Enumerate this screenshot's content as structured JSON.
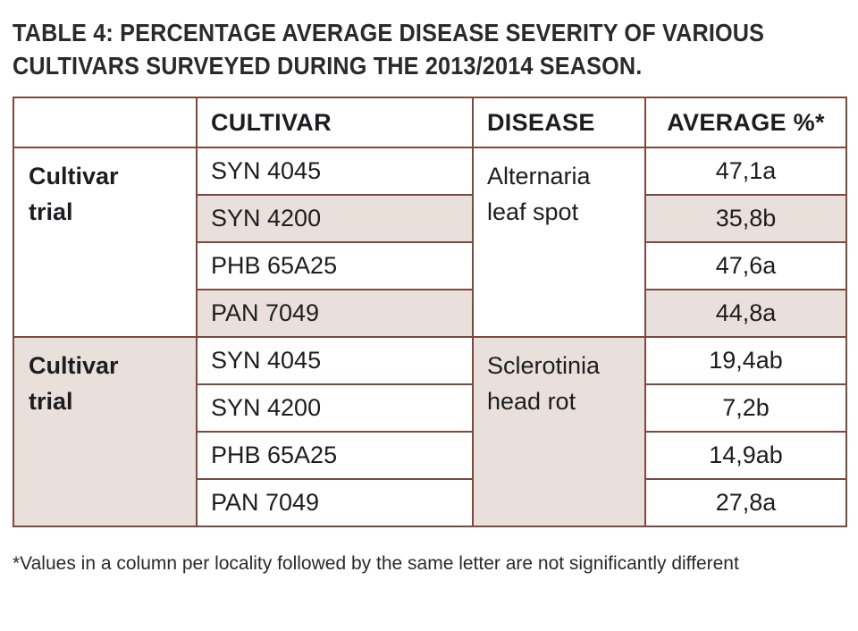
{
  "title": {
    "line1": "TABLE 4: PERCENTAGE AVERAGE DISEASE SEVERITY OF VARIOUS",
    "line2": "CULTIVARS SURVEYED DURING THE 2013/2014 SEASON."
  },
  "table": {
    "headers": [
      "",
      "CULTIVAR",
      "DISEASE",
      "AVERAGE %*"
    ],
    "groups": [
      {
        "label_line1": "Cultivar",
        "label_line2": "trial",
        "disease_line1": "Alternaria",
        "disease_line2": "leaf spot",
        "rows": [
          {
            "cultivar": "SYN 4045",
            "average": "47,1a"
          },
          {
            "cultivar": "SYN 4200",
            "average": "35,8b"
          },
          {
            "cultivar": "PHB 65A25",
            "average": "47,6a"
          },
          {
            "cultivar": "PAN 7049",
            "average": "44,8a"
          }
        ]
      },
      {
        "label_line1": "Cultivar",
        "label_line2": "trial",
        "disease_line1": "Sclerotinia",
        "disease_line2": "head rot",
        "rows": [
          {
            "cultivar": "SYN 4045",
            "average": "19,4ab"
          },
          {
            "cultivar": "SYN 4200",
            "average": "7,2b"
          },
          {
            "cultivar": "PHB 65A25",
            "average": "14,9ab"
          },
          {
            "cultivar": "PAN 7049",
            "average": "27,8a"
          }
        ]
      }
    ]
  },
  "footnote": "*Values in a column per locality followed by the same letter are not significantly different",
  "colors": {
    "border": "#7a4a3e",
    "shaded_row": "#e9e0dc",
    "text": "#1d1d1f"
  }
}
